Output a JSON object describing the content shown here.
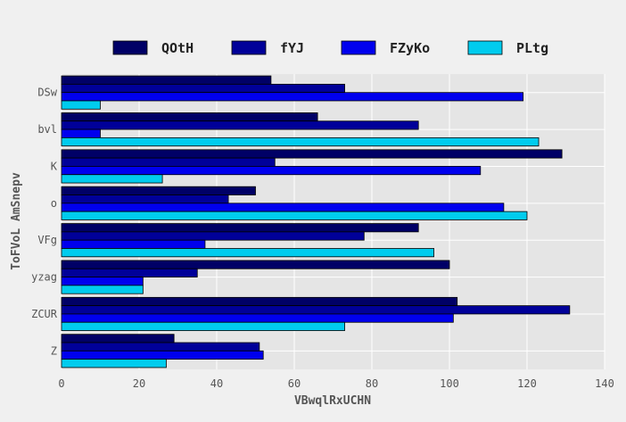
{
  "chart_data": {
    "type": "bar",
    "orientation": "horizontal",
    "categories": [
      "DSw",
      "bvl",
      "K",
      "o",
      "VFg",
      "yzag",
      "ZCUR",
      "Z"
    ],
    "series": [
      {
        "name": "QOtH",
        "color": "#000066",
        "values": [
          54,
          66,
          129,
          50,
          92,
          100,
          102,
          29
        ]
      },
      {
        "name": "fYJ",
        "color": "#000099",
        "values": [
          73,
          92,
          55,
          43,
          78,
          35,
          131,
          51
        ]
      },
      {
        "name": "FZyKo",
        "color": "#0000ee",
        "values": [
          119,
          10,
          108,
          114,
          37,
          21,
          101,
          52
        ]
      },
      {
        "name": "PLtg",
        "color": "#00ccee",
        "values": [
          10,
          123,
          26,
          120,
          96,
          21,
          73,
          27
        ]
      }
    ],
    "xlabel": "VBwqlRxUCHN",
    "ylabel": "ToFVoL AmSnepv",
    "xlim": [
      0,
      140
    ],
    "xticks": [
      "0",
      "20",
      "40",
      "60",
      "80",
      "100",
      "120",
      "140"
    ],
    "grid": true,
    "legend": "top"
  }
}
